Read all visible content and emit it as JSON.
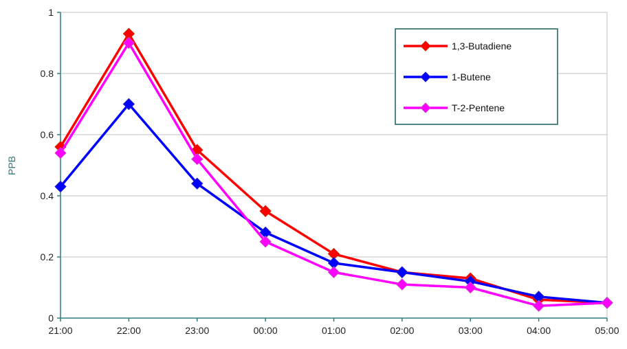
{
  "chart_data": {
    "type": "line",
    "title": "",
    "xlabel": "",
    "ylabel": "PPB",
    "categories": [
      "21:00",
      "22:00",
      "23:00",
      "00:00",
      "01:00",
      "02:00",
      "03:00",
      "04:00",
      "05:00"
    ],
    "ylim": [
      0,
      1
    ],
    "yticks": [
      0,
      0.2,
      0.4,
      0.6,
      0.8,
      1
    ],
    "ytick_labels": [
      "0",
      "0.2",
      "0.4",
      "0.6",
      "0.8",
      "1"
    ],
    "grid": true,
    "legend_position": "top-right",
    "series": [
      {
        "name": "1,3-Butadiene",
        "color": "#ff0000",
        "marker_color": "#cc2200",
        "values": [
          0.56,
          0.93,
          0.55,
          0.35,
          0.21,
          0.15,
          0.13,
          0.06,
          0.05
        ]
      },
      {
        "name": "1-Butene",
        "color": "#0000ff",
        "marker_color": "#2222cc",
        "values": [
          0.43,
          0.7,
          0.44,
          0.28,
          0.18,
          0.15,
          0.12,
          0.07,
          0.05
        ]
      },
      {
        "name": "T-2-Pentene",
        "color": "#ff00ff",
        "marker_color": "#cc44cc",
        "values": [
          0.54,
          0.9,
          0.52,
          0.25,
          0.15,
          0.11,
          0.1,
          0.04,
          0.05
        ]
      }
    ],
    "colors": {
      "axis": "#2e7d7d",
      "grid": "#c0c0c0",
      "legend_border": "#1a5c5c"
    }
  }
}
